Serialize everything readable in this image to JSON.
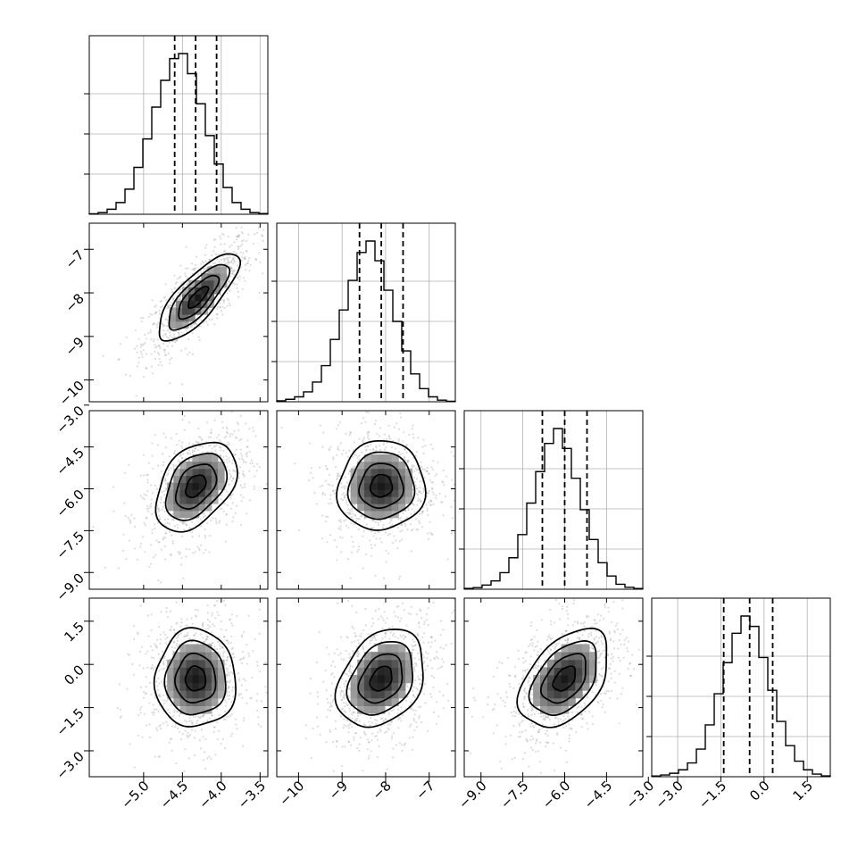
{
  "chart_data": {
    "type": "corner",
    "parameters": [
      {
        "index": 0,
        "range": [
          -5.7,
          -3.4
        ],
        "ticks": [
          -5.0,
          -4.5,
          -4.0,
          -3.5
        ],
        "tick_labels": [
          "−5.0",
          "−4.5",
          "−4.0",
          "−3.5"
        ],
        "median": -4.33,
        "q16": -4.6,
        "q84": -4.06
      },
      {
        "index": 1,
        "range": [
          -10.5,
          -6.4
        ],
        "ticks": [
          -10,
          -9,
          -8,
          -7
        ],
        "tick_labels": [
          "−10",
          "−9",
          "−8",
          "−7"
        ],
        "median": -8.1,
        "q16": -8.6,
        "q84": -7.6
      },
      {
        "index": 2,
        "range": [
          -9.6,
          -3.2
        ],
        "ticks": [
          -9.0,
          -7.5,
          -6.0,
          -4.5,
          -3.0
        ],
        "tick_labels": [
          "−9.0",
          "−7.5",
          "−6.0",
          "−4.5",
          "−3.0"
        ],
        "median": -6.0,
        "q16": -6.8,
        "q84": -5.2
      },
      {
        "index": 3,
        "range": [
          -3.9,
          2.3
        ],
        "ticks": [
          -3.0,
          -1.5,
          0.0,
          1.5
        ],
        "tick_labels": [
          "−3.0",
          "−1.5",
          "0.0",
          "1.5"
        ],
        "median": -0.5,
        "q16": -1.4,
        "q84": 0.3
      }
    ],
    "histograms": [
      {
        "param": 0,
        "counts": [
          0.3,
          1,
          3,
          7,
          15,
          28,
          45,
          64,
          80,
          93,
          96,
          84,
          66,
          47,
          30,
          16,
          7,
          3,
          1,
          0.4
        ]
      },
      {
        "param": 1,
        "counts": [
          0.6,
          1.5,
          3,
          6,
          12,
          22,
          38,
          56,
          74,
          91,
          98,
          86,
          68,
          49,
          31,
          17,
          8,
          3,
          1,
          0.3
        ]
      },
      {
        "param": 2,
        "counts": [
          0.5,
          1,
          2.5,
          5,
          10,
          19,
          33,
          52,
          71,
          88,
          97,
          85,
          67,
          48,
          30,
          16,
          8,
          3,
          1.2,
          0.4
        ]
      },
      {
        "param": 3,
        "counts": [
          0.4,
          1,
          2,
          4,
          8,
          16,
          30,
          48,
          66,
          83,
          93,
          87,
          69,
          50,
          32,
          18,
          9,
          4,
          1.5,
          0.5
        ]
      }
    ],
    "joint": [
      {
        "x": 0,
        "y": 1,
        "center_x": -4.3,
        "center_y": -8.1,
        "sigma_x": 0.26,
        "sigma_y": 0.5,
        "correlation": 0.78
      },
      {
        "x": 0,
        "y": 2,
        "center_x": -4.33,
        "center_y": -5.9,
        "sigma_x": 0.26,
        "sigma_y": 0.8,
        "correlation": 0.4
      },
      {
        "x": 1,
        "y": 2,
        "center_x": -8.1,
        "center_y": -5.9,
        "sigma_x": 0.5,
        "sigma_y": 0.8,
        "correlation": 0.05
      },
      {
        "x": 0,
        "y": 3,
        "center_x": -4.33,
        "center_y": -0.5,
        "sigma_x": 0.26,
        "sigma_y": 0.85,
        "correlation": 0.0
      },
      {
        "x": 1,
        "y": 3,
        "center_x": -8.1,
        "center_y": -0.5,
        "sigma_x": 0.5,
        "sigma_y": 0.85,
        "correlation": 0.3
      },
      {
        "x": 2,
        "y": 3,
        "center_x": -6.0,
        "center_y": -0.5,
        "sigma_x": 0.8,
        "sigma_y": 0.85,
        "correlation": 0.45
      }
    ],
    "contour_levels": [
      0.5,
      1.0,
      1.5,
      2.0
    ],
    "grid": true,
    "scatter": true,
    "quantiles": [
      0.16,
      0.5,
      0.84
    ]
  }
}
